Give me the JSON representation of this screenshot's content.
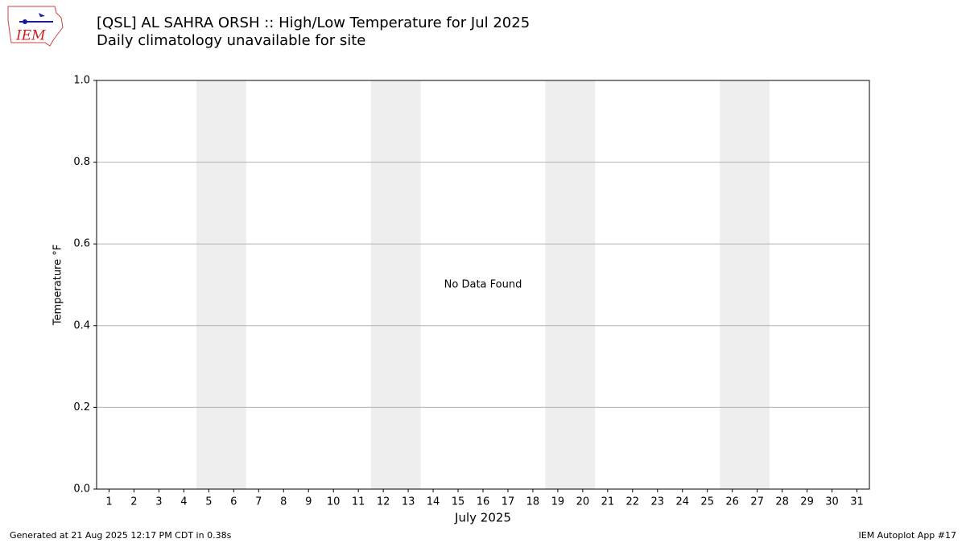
{
  "logo": "IEM",
  "chart_data": {
    "type": "line",
    "title": "[QSL] AL SAHRA    ORSH :: High/Low Temperature for Jul 2025",
    "subtitle": "Daily climatology unavailable for site",
    "xlabel": "July 2025",
    "ylabel": "Temperature $^\\circ$F",
    "xlim": [
      0.5,
      31.5
    ],
    "xticks": [
      1,
      2,
      3,
      4,
      5,
      6,
      7,
      8,
      9,
      10,
      11,
      12,
      13,
      14,
      15,
      16,
      17,
      18,
      19,
      20,
      21,
      22,
      23,
      24,
      25,
      26,
      27,
      28,
      29,
      30,
      31
    ],
    "ylim": [
      0,
      1
    ],
    "yticks": [
      {
        "value": 0,
        "label": "0.0"
      },
      {
        "value": 0.2,
        "label": "0.2"
      },
      {
        "value": 0.4,
        "label": "0.4"
      },
      {
        "value": 0.6,
        "label": "0.6"
      },
      {
        "value": 0.8,
        "label": "0.8"
      },
      {
        "value": 1,
        "label": "1.0"
      }
    ],
    "grid": true,
    "weekend_bands": [
      [
        4.5,
        6.5
      ],
      [
        11.5,
        13.5
      ],
      [
        18.5,
        20.5
      ],
      [
        25.5,
        27.5
      ]
    ],
    "weekend_color": "#eeeeee",
    "annotation": {
      "text": "No Data Found",
      "x": 16,
      "y": 0.5
    }
  },
  "footer": {
    "left": "Generated at 21 Aug 2025 12:17 PM CDT in 0.38s",
    "right": "IEM Autoplot App #17"
  }
}
